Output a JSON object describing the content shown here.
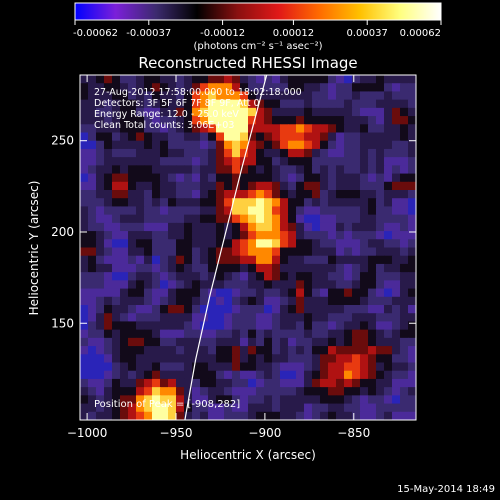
{
  "colorbar": {
    "tick_labels": [
      "-0.00062",
      "-0.00037",
      "-0.00012",
      "0.00012",
      "0.00037",
      "0.00062"
    ],
    "tick_values": [
      -0.00062,
      -0.00037,
      -0.00012,
      0.00012,
      0.00037,
      0.00062
    ],
    "range": [
      -0.00062,
      0.00062
    ],
    "units_label": "(photons cm⁻² s⁻¹ asec⁻²)",
    "colors": [
      "#0000ff",
      "#7b1fd9",
      "#3c2a6e",
      "#000000",
      "#8a1010",
      "#e01818",
      "#ff6a00",
      "#ffc000",
      "#ffff80",
      "#ffffff"
    ]
  },
  "chart_data": {
    "type": "heatmap",
    "title": "Reconstructed RHESSI Image",
    "xlabel": "Heliocentric X (arcsec)",
    "ylabel": "Heliocentric Y (arcsec)",
    "x_ticks": [
      -1000,
      -950,
      -900,
      -850
    ],
    "y_ticks": [
      150,
      200,
      250
    ],
    "xlim": [
      -1004,
      -815
    ],
    "ylim": [
      97,
      286
    ],
    "annotations": [
      "27-Aug-2012 17:58:00.000 to 18:02:18.000",
      "Detectors: 3F 5F 6F 7F 8F 9F, Att 0",
      "Energy Range: 12.0 - 25.0 keV",
      "Clean    Total counts: 3.06E+03"
    ],
    "peak_label": "Position of Peak = [-908,282]",
    "peak_position": [
      -908,
      282
    ],
    "limb_points": [
      [
        -945,
        97
      ],
      [
        -939,
        130
      ],
      [
        -931,
        165
      ],
      [
        -922,
        200
      ],
      [
        -913,
        235
      ],
      [
        -904,
        268
      ],
      [
        -899,
        286
      ]
    ],
    "hot_spots": [
      {
        "x": -925,
        "y": 270,
        "strength": 1.0
      },
      {
        "x": -915,
        "y": 255,
        "strength": 0.85
      },
      {
        "x": -898,
        "y": 195,
        "strength": 0.85
      },
      {
        "x": -905,
        "y": 215,
        "strength": 0.7
      },
      {
        "x": -960,
        "y": 105,
        "strength": 0.8
      },
      {
        "x": -880,
        "y": 250,
        "strength": 0.55
      },
      {
        "x": -855,
        "y": 125,
        "strength": 0.55
      }
    ]
  },
  "footer": {
    "timestamp": "15-May-2014 18:49"
  }
}
